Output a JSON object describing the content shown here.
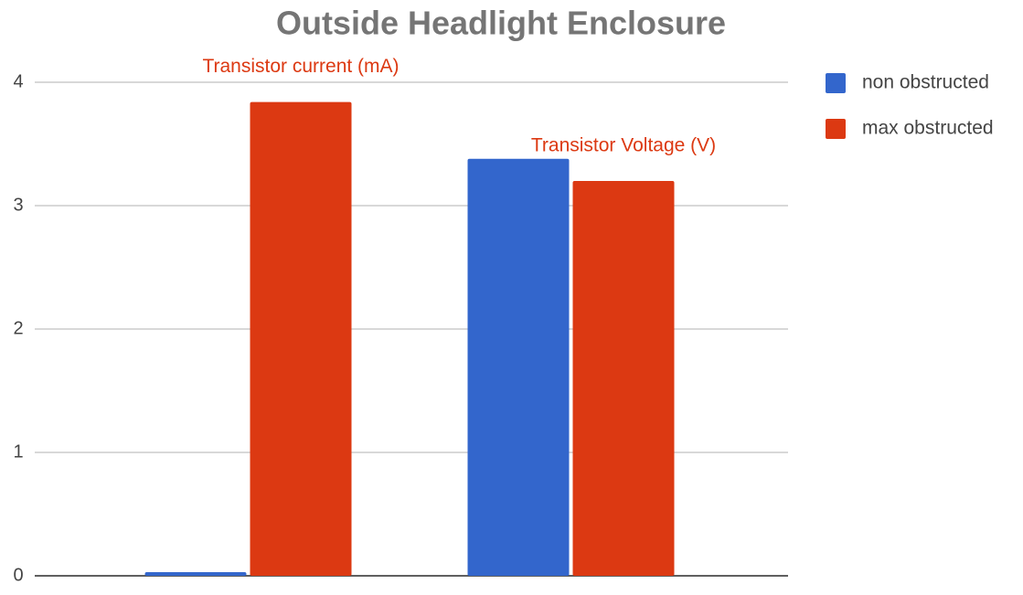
{
  "chart_data": {
    "type": "bar",
    "title": "Outside Headlight Enclosure",
    "categories": [
      null,
      null
    ],
    "annotations": [
      "Transistor current (mA)",
      "Transistor Voltage (V)"
    ],
    "series": [
      {
        "name": "non obstructed",
        "color": "#3366cc",
        "values": [
          0.03,
          3.38
        ]
      },
      {
        "name": "max obstructed",
        "color": "#dc3912",
        "values": [
          3.84,
          3.2
        ]
      }
    ],
    "ylim": [
      0,
      4
    ],
    "yticks": [
      0,
      1,
      2,
      3,
      4
    ],
    "grid": true,
    "legend": "right"
  }
}
